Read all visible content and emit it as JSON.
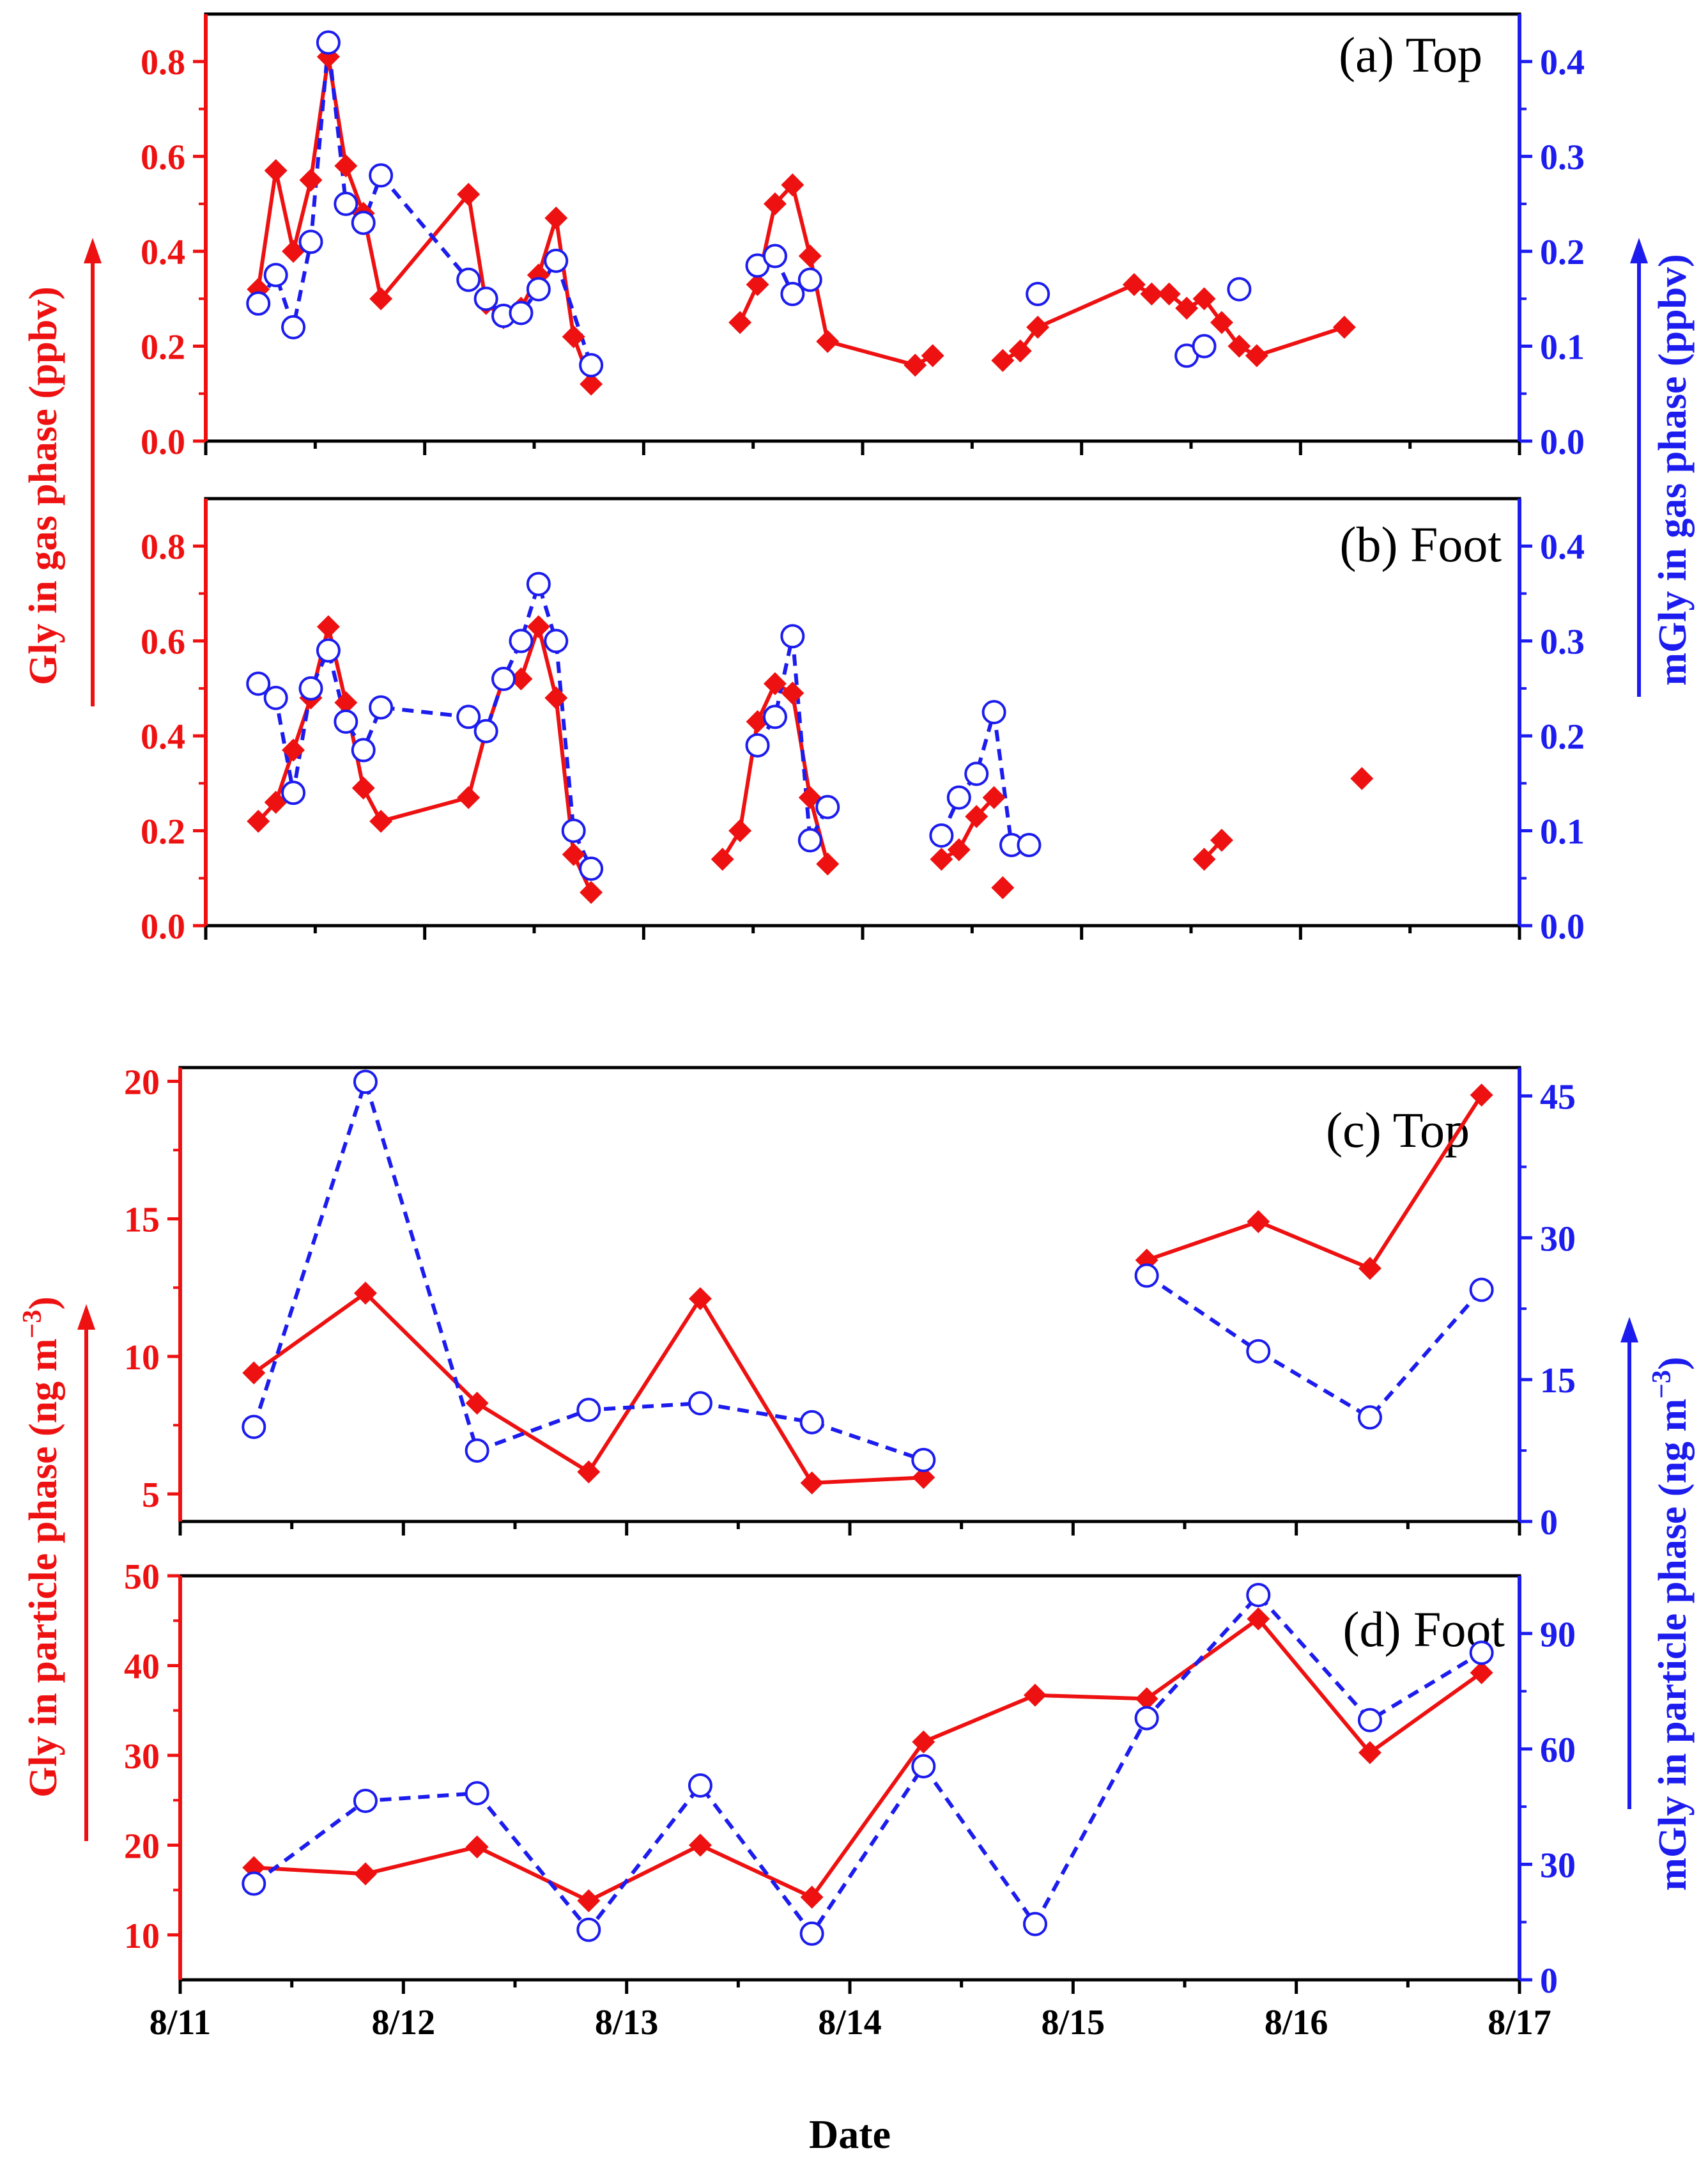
{
  "figure": {
    "xlabel": "Date",
    "x_ticks": [
      "8/11",
      "8/12",
      "8/13",
      "8/14",
      "8/15",
      "8/16",
      "8/17"
    ],
    "gas_left_axis_label": "Gly in gas phase (ppbv)",
    "gas_right_axis_label": "mGly in gas phase (ppbv)",
    "particle_left_axis_label_main": "Gly in particle phase (ng m",
    "particle_right_axis_label_main": "mGly in particle phase (ng m",
    "particle_axis_label_exponent": "−3",
    "particle_axis_label_close": ")",
    "gly_color": "#ee1111",
    "mgly_color": "#1c1cee"
  },
  "chart_data": [
    {
      "id": "a",
      "type": "line",
      "title": "(a) Top",
      "xlabel": "Date",
      "xlim": [
        0,
        6
      ],
      "x_unit": "days since 8/11 00:00",
      "left_axis": {
        "label": "Gly in gas phase (ppbv)",
        "lim": [
          0,
          0.9
        ],
        "ticks": [
          0.0,
          0.2,
          0.4,
          0.6,
          0.8
        ],
        "tick_labels": [
          "0.0",
          "0.2",
          "0.4",
          "0.6",
          "0.8"
        ]
      },
      "right_axis": {
        "label": "mGly in gas phase (ppbv)",
        "lim": [
          0,
          0.45
        ],
        "ticks": [
          0.0,
          0.1,
          0.2,
          0.3,
          0.4
        ],
        "tick_labels": [
          "0.0",
          "0.1",
          "0.2",
          "0.3",
          "0.4"
        ]
      },
      "series": [
        {
          "name": "Gly",
          "axis": "left",
          "marker": "diamond",
          "line": "solid",
          "color": "#ee1111",
          "segments": [
            [
              [
                0.24,
                0.32
              ],
              [
                0.32,
                0.57
              ],
              [
                0.4,
                0.4
              ],
              [
                0.48,
                0.55
              ],
              [
                0.56,
                0.81
              ],
              [
                0.64,
                0.58
              ],
              [
                0.72,
                0.48
              ],
              [
                0.8,
                0.3
              ],
              [
                1.2,
                0.52
              ],
              [
                1.28,
                0.29
              ],
              [
                1.36,
                0.26
              ],
              [
                1.44,
                0.28
              ],
              [
                1.52,
                0.35
              ],
              [
                1.6,
                0.47
              ],
              [
                1.68,
                0.22
              ],
              [
                1.76,
                0.12
              ]
            ],
            [
              [
                2.44,
                0.25
              ],
              [
                2.52,
                0.33
              ],
              [
                2.6,
                0.5
              ],
              [
                2.68,
                0.54
              ],
              [
                2.76,
                0.39
              ],
              [
                2.84,
                0.21
              ],
              [
                3.24,
                0.16
              ],
              [
                3.32,
                0.18
              ]
            ],
            [
              [
                3.64,
                0.17
              ],
              [
                3.72,
                0.19
              ],
              [
                3.8,
                0.24
              ],
              [
                4.24,
                0.33
              ],
              [
                4.32,
                0.31
              ],
              [
                4.4,
                0.31
              ],
              [
                4.48,
                0.28
              ],
              [
                4.56,
                0.3
              ],
              [
                4.64,
                0.25
              ],
              [
                4.72,
                0.2
              ],
              [
                4.8,
                0.18
              ],
              [
                5.2,
                0.24
              ]
            ]
          ]
        },
        {
          "name": "mGly",
          "axis": "right",
          "marker": "open-circle",
          "line": "dashed",
          "color": "#1c1cee",
          "segments": [
            [
              [
                0.24,
                0.145
              ],
              [
                0.32,
                0.175
              ],
              [
                0.4,
                0.12
              ],
              [
                0.48,
                0.21
              ],
              [
                0.56,
                0.42
              ],
              [
                0.64,
                0.25
              ],
              [
                0.72,
                0.23
              ],
              [
                0.8,
                0.28
              ],
              [
                1.2,
                0.17
              ],
              [
                1.28,
                0.15
              ],
              [
                1.36,
                0.132
              ],
              [
                1.44,
                0.135
              ],
              [
                1.52,
                0.16
              ],
              [
                1.6,
                0.19
              ],
              [
                1.76,
                0.08
              ]
            ],
            [
              [
                2.52,
                0.185
              ],
              [
                2.6,
                0.195
              ],
              [
                2.68,
                0.155
              ],
              [
                2.76,
                0.17
              ]
            ],
            [
              [
                3.8,
                0.155
              ]
            ],
            [
              [
                4.48,
                0.09
              ],
              [
                4.56,
                0.1
              ]
            ],
            [
              [
                4.72,
                0.16
              ]
            ]
          ]
        }
      ]
    },
    {
      "id": "b",
      "type": "line",
      "title": "(b) Foot",
      "xlabel": "Date",
      "xlim": [
        0,
        6
      ],
      "x_unit": "days since 8/11 00:00",
      "left_axis": {
        "label": "Gly in gas phase (ppbv)",
        "lim": [
          0,
          0.9
        ],
        "ticks": [
          0.0,
          0.2,
          0.4,
          0.6,
          0.8
        ],
        "tick_labels": [
          "0.0",
          "0.2",
          "0.4",
          "0.6",
          "0.8"
        ]
      },
      "right_axis": {
        "label": "mGly in gas phase (ppbv)",
        "lim": [
          0,
          0.45
        ],
        "ticks": [
          0.0,
          0.1,
          0.2,
          0.3,
          0.4
        ],
        "tick_labels": [
          "0.0",
          "0.1",
          "0.2",
          "0.3",
          "0.4"
        ]
      },
      "series": [
        {
          "name": "Gly",
          "axis": "left",
          "marker": "diamond",
          "line": "solid",
          "color": "#ee1111",
          "segments": [
            [
              [
                0.24,
                0.22
              ],
              [
                0.32,
                0.26
              ],
              [
                0.4,
                0.37
              ],
              [
                0.48,
                0.48
              ],
              [
                0.56,
                0.63
              ],
              [
                0.64,
                0.47
              ],
              [
                0.72,
                0.29
              ],
              [
                0.8,
                0.22
              ],
              [
                1.2,
                0.27
              ],
              [
                1.28,
                0.41
              ],
              [
                1.36,
                0.52
              ],
              [
                1.44,
                0.52
              ],
              [
                1.52,
                0.63
              ],
              [
                1.6,
                0.48
              ],
              [
                1.68,
                0.15
              ],
              [
                1.76,
                0.07
              ]
            ],
            [
              [
                2.36,
                0.14
              ],
              [
                2.44,
                0.2
              ],
              [
                2.52,
                0.43
              ],
              [
                2.6,
                0.51
              ],
              [
                2.68,
                0.49
              ],
              [
                2.76,
                0.27
              ],
              [
                2.84,
                0.13
              ]
            ],
            [
              [
                3.36,
                0.14
              ],
              [
                3.44,
                0.16
              ],
              [
                3.52,
                0.23
              ],
              [
                3.6,
                0.27
              ]
            ],
            [
              [
                3.64,
                0.08
              ]
            ],
            [
              [
                4.56,
                0.14
              ],
              [
                4.64,
                0.18
              ]
            ],
            [
              [
                5.28,
                0.31
              ]
            ]
          ]
        },
        {
          "name": "mGly",
          "axis": "right",
          "marker": "open-circle",
          "line": "dashed",
          "color": "#1c1cee",
          "segments": [
            [
              [
                0.24,
                0.255
              ],
              [
                0.32,
                0.24
              ],
              [
                0.4,
                0.14
              ],
              [
                0.48,
                0.25
              ],
              [
                0.56,
                0.29
              ],
              [
                0.64,
                0.215
              ],
              [
                0.72,
                0.185
              ],
              [
                0.8,
                0.23
              ],
              [
                1.2,
                0.22
              ],
              [
                1.28,
                0.205
              ],
              [
                1.36,
                0.26
              ],
              [
                1.44,
                0.3
              ],
              [
                1.52,
                0.36
              ],
              [
                1.6,
                0.3
              ],
              [
                1.68,
                0.1
              ],
              [
                1.76,
                0.06
              ]
            ],
            [
              [
                2.52,
                0.19
              ],
              [
                2.6,
                0.22
              ],
              [
                2.68,
                0.305
              ],
              [
                2.76,
                0.09
              ],
              [
                2.84,
                0.125
              ]
            ],
            [
              [
                3.36,
                0.095
              ],
              [
                3.44,
                0.135
              ],
              [
                3.52,
                0.16
              ],
              [
                3.6,
                0.225
              ],
              [
                3.68,
                0.085
              ],
              [
                3.76,
                0.085
              ]
            ]
          ]
        }
      ]
    },
    {
      "id": "c",
      "type": "line",
      "title": "(c) Top",
      "xlabel": "Date",
      "xlim": [
        0,
        6
      ],
      "x_unit": "days since 8/11 00:00",
      "left_axis": {
        "label": "Gly in particle phase (ng m−3)",
        "lim": [
          4,
          20.5
        ],
        "ticks": [
          5,
          10,
          15,
          20
        ],
        "tick_labels": [
          "5",
          "10",
          "15",
          "20"
        ]
      },
      "right_axis": {
        "label": "mGly in particle phase (ng m−3)",
        "lim": [
          0,
          48
        ],
        "ticks": [
          0,
          15,
          30,
          45
        ],
        "tick_labels": [
          "0",
          "15",
          "30",
          "45"
        ]
      },
      "series": [
        {
          "name": "Gly",
          "axis": "left",
          "marker": "diamond",
          "line": "solid",
          "color": "#ee1111",
          "segments": [
            [
              [
                0.33,
                9.4
              ],
              [
                0.83,
                12.3
              ],
              [
                1.33,
                8.3
              ],
              [
                1.83,
                5.8
              ],
              [
                2.33,
                12.1
              ],
              [
                2.83,
                5.4
              ],
              [
                3.33,
                5.6
              ]
            ],
            [
              [
                4.33,
                13.5
              ],
              [
                4.83,
                14.9
              ],
              [
                5.33,
                13.2
              ],
              [
                5.83,
                19.5
              ]
            ]
          ]
        },
        {
          "name": "mGly",
          "axis": "right",
          "marker": "open-circle",
          "line": "dashed",
          "color": "#1c1cee",
          "segments": [
            [
              [
                0.33,
                10.0
              ],
              [
                0.83,
                46.5
              ],
              [
                1.33,
                7.5
              ],
              [
                1.83,
                11.8
              ],
              [
                2.33,
                12.5
              ],
              [
                2.83,
                10.5
              ],
              [
                3.33,
                6.5
              ]
            ],
            [
              [
                4.33,
                26.0
              ],
              [
                4.83,
                18.0
              ],
              [
                5.33,
                11.0
              ],
              [
                5.83,
                24.5
              ]
            ]
          ]
        }
      ]
    },
    {
      "id": "d",
      "type": "line",
      "title": "(d) Foot",
      "xlabel": "Date",
      "xlim": [
        0,
        6
      ],
      "x_unit": "days since 8/11 00:00",
      "left_axis": {
        "label": "Gly in particle phase (ng m−3)",
        "lim": [
          5,
          50
        ],
        "ticks": [
          10,
          20,
          30,
          40,
          50
        ],
        "tick_labels": [
          "10",
          "20",
          "30",
          "40",
          "50"
        ]
      },
      "right_axis": {
        "label": "mGly in particle phase (ng m−3)",
        "lim": [
          0,
          105
        ],
        "ticks": [
          0,
          30,
          60,
          90
        ],
        "tick_labels": [
          "0",
          "30",
          "60",
          "90"
        ]
      },
      "series": [
        {
          "name": "Gly",
          "axis": "left",
          "marker": "diamond",
          "line": "solid",
          "color": "#ee1111",
          "segments": [
            [
              [
                0.33,
                17.5
              ],
              [
                0.83,
                16.8
              ],
              [
                1.33,
                19.8
              ],
              [
                1.83,
                13.8
              ],
              [
                2.33,
                20.0
              ],
              [
                2.83,
                14.2
              ],
              [
                3.33,
                31.5
              ],
              [
                3.83,
                36.7
              ],
              [
                4.33,
                36.3
              ],
              [
                4.83,
                45.2
              ],
              [
                5.33,
                30.3
              ],
              [
                5.83,
                39.2
              ]
            ]
          ]
        },
        {
          "name": "mGly",
          "axis": "right",
          "marker": "open-circle",
          "line": "dashed",
          "color": "#1c1cee",
          "segments": [
            [
              [
                0.33,
                25.0
              ],
              [
                0.83,
                46.5
              ],
              [
                1.33,
                48.5
              ],
              [
                1.83,
                13.0
              ],
              [
                2.33,
                50.5
              ],
              [
                2.83,
                12.0
              ],
              [
                3.33,
                55.5
              ],
              [
                3.83,
                14.5
              ],
              [
                4.33,
                68.0
              ],
              [
                4.83,
                100.0
              ],
              [
                5.33,
                67.5
              ],
              [
                5.83,
                85.0
              ]
            ]
          ]
        }
      ]
    }
  ]
}
